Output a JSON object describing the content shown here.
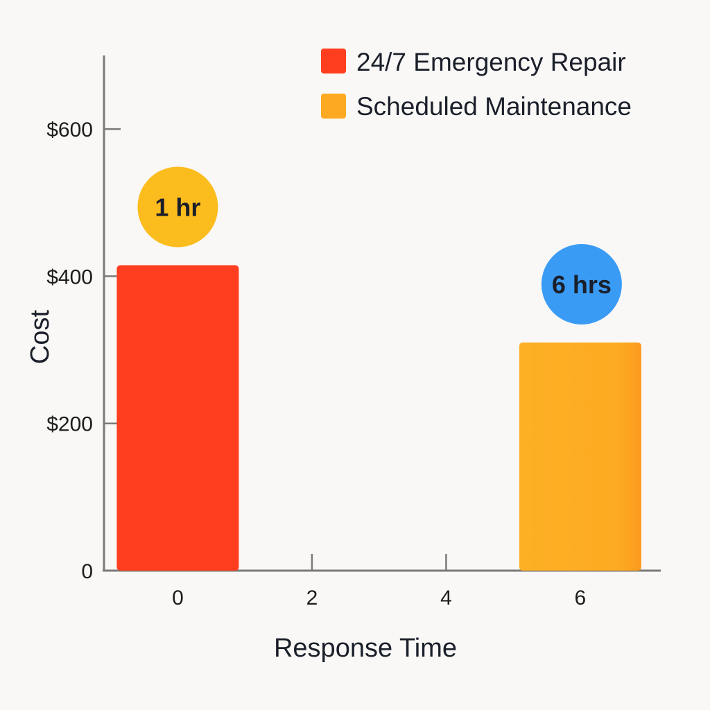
{
  "chart_data": {
    "type": "bar",
    "xlabel": "Response Time",
    "ylabel": "Cost",
    "x_ticks": [
      "0",
      "2",
      "4",
      "6"
    ],
    "y_ticks": [
      {
        "value": 0,
        "label": "0"
      },
      {
        "value": 200,
        "label": "$200"
      },
      {
        "value": 400,
        "label": "$400"
      },
      {
        "value": 600,
        "label": "$600"
      }
    ],
    "ylim": [
      0,
      700
    ],
    "xlim": [
      -1.1,
      7.2
    ],
    "grid": false,
    "legend_position": "top-right",
    "series": [
      {
        "name": "24/7 Emergency Repair",
        "x": 0,
        "value": 415,
        "color": "#ff3d1f",
        "badge": "1 hr",
        "badge_color": "#fbbc1e"
      },
      {
        "name": "Scheduled Maintenance",
        "x": 6,
        "value": 310,
        "color": "#fdaa22",
        "badge": "6 hrs",
        "badge_color": "#3a9bf5"
      }
    ]
  }
}
